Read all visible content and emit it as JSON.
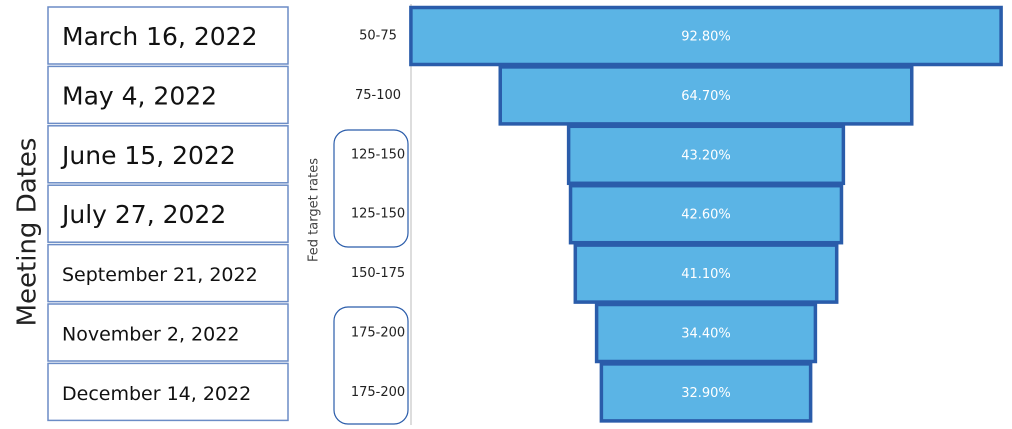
{
  "chart_data": {
    "type": "funnel",
    "y_label": "Fed target rates",
    "categories": [
      "50-75",
      "75-100",
      "125-150",
      "125-150",
      "150-175",
      "175-200",
      "175-200"
    ],
    "values": [
      92.8,
      64.7,
      43.2,
      42.6,
      41.1,
      34.4,
      32.9
    ],
    "value_labels": [
      "92.80%",
      "64.70%",
      "43.20%",
      "42.60%",
      "41.10%",
      "34.40%",
      "32.90%"
    ],
    "color": "#5bb4e5",
    "meeting_dates_label": "Meeting Dates",
    "meeting_dates": [
      "March 16, 2022",
      "May 4, 2022",
      "June 15, 2022",
      "July 27, 2022",
      "September 21, 2022",
      "November 2, 2022",
      "December 14, 2022"
    ]
  }
}
